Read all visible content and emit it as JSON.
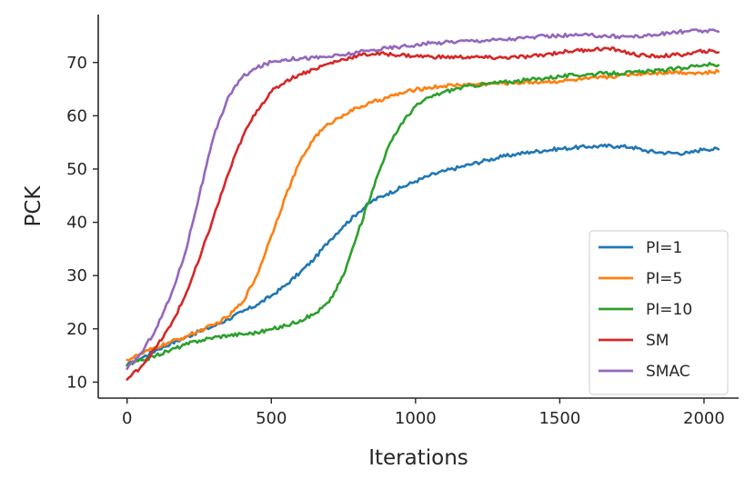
{
  "chart_data": {
    "type": "line",
    "title": "",
    "xlabel": "Iterations",
    "ylabel": "PCK",
    "xlim": [
      -100,
      2120
    ],
    "ylim": [
      7,
      79
    ],
    "xticks": [
      0,
      500,
      1000,
      1500,
      2000
    ],
    "yticks": [
      10,
      20,
      30,
      40,
      50,
      60,
      70
    ],
    "grid": false,
    "legend_position": "lower-right",
    "series": [
      {
        "name": "PI=1",
        "color": "#1f77b4",
        "x": [
          0,
          50,
          100,
          150,
          200,
          250,
          300,
          350,
          400,
          450,
          500,
          550,
          600,
          650,
          700,
          750,
          800,
          850,
          900,
          950,
          1000,
          1050,
          1100,
          1150,
          1200,
          1250,
          1300,
          1350,
          1400,
          1450,
          1500,
          1550,
          1600,
          1650,
          1700,
          1750,
          1800,
          1850,
          1900,
          1950,
          2000,
          2050
        ],
        "y": [
          13.2,
          14.5,
          16,
          17.2,
          18.3,
          19.5,
          20.5,
          21.8,
          23.2,
          24.5,
          26.2,
          28.2,
          30.6,
          33.2,
          36.5,
          39.3,
          41.8,
          44,
          45.3,
          46.5,
          47.7,
          48.8,
          49.6,
          50.3,
          51,
          51.7,
          52.3,
          52.8,
          53.2,
          53.5,
          53.8,
          54,
          54.2,
          54.3,
          54.3,
          54.1,
          53.4,
          53.1,
          53,
          53,
          53.8,
          53.7
        ]
      },
      {
        "name": "PI=5",
        "color": "#ff7f0e",
        "x": [
          0,
          50,
          100,
          150,
          200,
          250,
          300,
          350,
          400,
          450,
          500,
          550,
          600,
          650,
          700,
          750,
          800,
          850,
          900,
          950,
          1000,
          1050,
          1100,
          1150,
          1200,
          1250,
          1300,
          1350,
          1400,
          1450,
          1500,
          1550,
          1600,
          1650,
          1700,
          1750,
          1800,
          1850,
          1900,
          1950,
          2000,
          2050
        ],
        "y": [
          14.2,
          15.3,
          16.5,
          17.5,
          18.5,
          19.6,
          20.7,
          22.3,
          25,
          30,
          37.5,
          45,
          51.5,
          56,
          58.5,
          60.2,
          61.5,
          62.5,
          63.4,
          64.2,
          64.9,
          65.3,
          65.6,
          65.8,
          65.9,
          66,
          66.1,
          66.2,
          66.3,
          66.4,
          66.5,
          66.7,
          66.9,
          67.2,
          67.5,
          67.8,
          68,
          68.1,
          68.2,
          68.1,
          68,
          68.3
        ]
      },
      {
        "name": "PI=10",
        "color": "#2ca02c",
        "x": [
          0,
          50,
          100,
          150,
          200,
          250,
          300,
          350,
          400,
          450,
          500,
          550,
          600,
          650,
          700,
          750,
          800,
          850,
          900,
          950,
          1000,
          1050,
          1100,
          1150,
          1200,
          1250,
          1300,
          1350,
          1400,
          1450,
          1500,
          1550,
          1600,
          1650,
          1700,
          1750,
          1800,
          1850,
          1900,
          1950,
          2000,
          2050
        ],
        "y": [
          13.1,
          14.1,
          15,
          16,
          17,
          17.8,
          18.4,
          18.8,
          19,
          19.3,
          19.9,
          20.6,
          21.6,
          22.8,
          25,
          30,
          38,
          46,
          53.5,
          58.5,
          61.8,
          63.5,
          64.5,
          65.2,
          65.7,
          66,
          66.3,
          66.5,
          66.8,
          67.1,
          67.4,
          67.6,
          67.8,
          67.9,
          68,
          68.1,
          68.3,
          68.5,
          68.8,
          69.2,
          69.6,
          69.5
        ]
      },
      {
        "name": "SM",
        "color": "#d62728",
        "x": [
          0,
          50,
          100,
          150,
          200,
          250,
          300,
          350,
          400,
          450,
          500,
          550,
          600,
          650,
          700,
          750,
          800,
          850,
          900,
          950,
          1000,
          1050,
          1100,
          1150,
          1200,
          1250,
          1300,
          1350,
          1400,
          1450,
          1500,
          1550,
          1600,
          1650,
          1700,
          1750,
          1800,
          1850,
          1900,
          1950,
          2000,
          2050
        ],
        "y": [
          10.5,
          13,
          16.5,
          20.5,
          26,
          33,
          41,
          49,
          56,
          61,
          64.5,
          66.5,
          67.8,
          68.8,
          69.8,
          70.6,
          71.3,
          71.6,
          71.6,
          71.4,
          71.2,
          71.1,
          71,
          71,
          71,
          70.9,
          70.9,
          71,
          71.1,
          71.5,
          71.9,
          72.2,
          72.4,
          72.6,
          72.4,
          71.6,
          71.2,
          71.2,
          71.4,
          71.6,
          72.2,
          71.9
        ]
      },
      {
        "name": "SMAC",
        "color": "#9467bd",
        "x": [
          0,
          50,
          100,
          150,
          200,
          250,
          300,
          350,
          400,
          450,
          500,
          550,
          600,
          650,
          700,
          750,
          800,
          850,
          900,
          950,
          1000,
          1050,
          1100,
          1150,
          1200,
          1250,
          1300,
          1350,
          1400,
          1450,
          1500,
          1550,
          1600,
          1650,
          1700,
          1750,
          1800,
          1850,
          1900,
          1950,
          2000,
          2050
        ],
        "y": [
          12.5,
          15.5,
          20,
          26,
          34,
          45,
          56,
          63.5,
          67.3,
          69,
          70.1,
          70.6,
          70.8,
          70.9,
          71.1,
          71.4,
          71.9,
          72.3,
          72.7,
          73,
          73.3,
          73.6,
          73.8,
          74,
          74.1,
          74.2,
          74.3,
          74.5,
          74.7,
          74.9,
          75,
          75.1,
          75.1,
          75,
          74.9,
          74.9,
          75,
          75.3,
          75.7,
          75.9,
          75.9,
          75.8
        ]
      }
    ]
  }
}
